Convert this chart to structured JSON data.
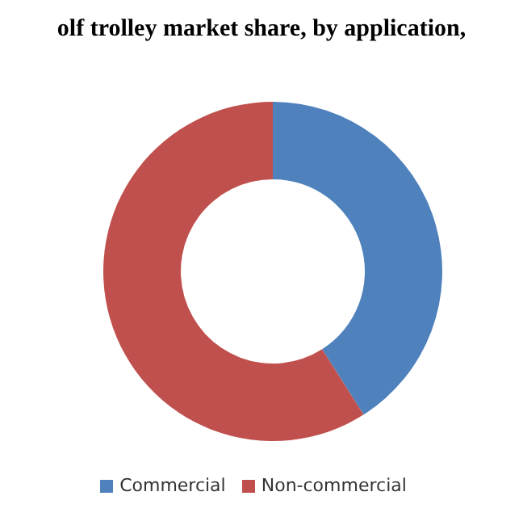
{
  "chart_data": {
    "type": "donut",
    "title": "olf trolley market share, by application,",
    "categories": [
      "Commercial",
      "Non-commercial"
    ],
    "values": [
      41,
      59
    ],
    "colors": [
      "#4f81bd",
      "#c0504d"
    ],
    "legend": "bottom"
  }
}
